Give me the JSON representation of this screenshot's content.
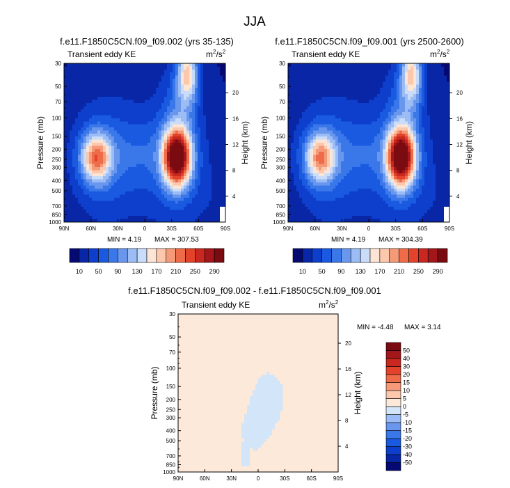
{
  "figure": {
    "title": "JJA"
  },
  "chart_data": [
    {
      "type": "heatmap",
      "title": "f.e11.F1850C5CN.f09_f09.002 (yrs 35-135)",
      "subtitle_left": "Transient eddy KE",
      "units": "m",
      "units_sup1": "2",
      "units_mid": "/s",
      "units_sup2": "2",
      "xlabel": "",
      "ylabel": "Pressure (mb)",
      "ylabel_right": "Height (km)",
      "x_ticks": [
        "90N",
        "60N",
        "30N",
        "0",
        "30S",
        "60S",
        "90S"
      ],
      "x_values": [
        90,
        60,
        30,
        0,
        -30,
        -60,
        -90
      ],
      "y_ticks": [
        "30",
        "50",
        "70",
        "100",
        "150",
        "200",
        "250",
        "300",
        "400",
        "500",
        "700",
        "850",
        "1000"
      ],
      "y_values": [
        30,
        50,
        70,
        100,
        150,
        200,
        250,
        300,
        400,
        500,
        700,
        850,
        1000
      ],
      "height_ticks": [
        "4",
        "8",
        "12",
        "16",
        "20"
      ],
      "height_values": [
        4,
        8,
        12,
        16,
        20
      ],
      "ylim": [
        1000,
        30
      ],
      "xlim": [
        90,
        -90
      ],
      "min_label": "MIN =  4.19",
      "max_label": "MAX = 307.53",
      "min": 4.19,
      "max": 307.53,
      "colorbar": {
        "orientation": "horizontal",
        "levels": [
          10,
          30,
          50,
          70,
          90,
          110,
          130,
          150,
          170,
          190,
          210,
          230,
          250,
          270,
          290
        ],
        "tick_labels": [
          "10",
          "50",
          "90",
          "130",
          "170",
          "210",
          "250",
          "290"
        ],
        "colors": [
          "#050a72",
          "#0826a6",
          "#0d3fcc",
          "#1a5ae0",
          "#3a78ea",
          "#6a97ee",
          "#9cbcf5",
          "#c9dcfa",
          "#fde5d5",
          "#fbc8ae",
          "#f59a78",
          "#ee6c49",
          "#e4432b",
          "#c8281f",
          "#a3161a",
          "#7a0b10"
        ]
      },
      "features": [
        {
          "name": "southern-jet-maximum",
          "lat": -35,
          "pressure": 250,
          "value": 300
        },
        {
          "name": "northern-jet",
          "lat": 55,
          "pressure": 250,
          "value": 170
        },
        {
          "name": "southern-stratospheric-plume",
          "lat": -48,
          "pressure": 40,
          "value": 140
        }
      ]
    },
    {
      "type": "heatmap",
      "title": "f.e11.F1850C5CN.f09_f09.001 (yrs 2500-2600)",
      "subtitle_left": "Transient eddy KE",
      "units": "m",
      "units_sup1": "2",
      "units_mid": "/s",
      "units_sup2": "2",
      "xlabel": "",
      "ylabel": "Pressure (mb)",
      "ylabel_right": "Height (km)",
      "x_ticks": [
        "90N",
        "60N",
        "30N",
        "0",
        "30S",
        "60S",
        "90S"
      ],
      "x_values": [
        90,
        60,
        30,
        0,
        -30,
        -60,
        -90
      ],
      "y_ticks": [
        "30",
        "50",
        "70",
        "100",
        "150",
        "200",
        "250",
        "300",
        "400",
        "500",
        "700",
        "850",
        "1000"
      ],
      "y_values": [
        30,
        50,
        70,
        100,
        150,
        200,
        250,
        300,
        400,
        500,
        700,
        850,
        1000
      ],
      "height_ticks": [
        "4",
        "8",
        "12",
        "16",
        "20"
      ],
      "height_values": [
        4,
        8,
        12,
        16,
        20
      ],
      "ylim": [
        1000,
        30
      ],
      "xlim": [
        90,
        -90
      ],
      "min_label": "MIN =  4.19",
      "max_label": "MAX = 304.39",
      "min": 4.19,
      "max": 304.39,
      "colorbar": {
        "orientation": "horizontal",
        "levels": [
          10,
          30,
          50,
          70,
          90,
          110,
          130,
          150,
          170,
          190,
          210,
          230,
          250,
          270,
          290
        ],
        "tick_labels": [
          "10",
          "50",
          "90",
          "130",
          "170",
          "210",
          "250",
          "290"
        ],
        "colors": [
          "#050a72",
          "#0826a6",
          "#0d3fcc",
          "#1a5ae0",
          "#3a78ea",
          "#6a97ee",
          "#9cbcf5",
          "#c9dcfa",
          "#fde5d5",
          "#fbc8ae",
          "#f59a78",
          "#ee6c49",
          "#e4432b",
          "#c8281f",
          "#a3161a",
          "#7a0b10"
        ]
      },
      "features": [
        {
          "name": "southern-jet-maximum",
          "lat": -35,
          "pressure": 250,
          "value": 300
        },
        {
          "name": "northern-jet",
          "lat": 55,
          "pressure": 250,
          "value": 165
        },
        {
          "name": "southern-stratospheric-plume",
          "lat": -48,
          "pressure": 40,
          "value": 140
        }
      ]
    },
    {
      "type": "heatmap",
      "title": "f.e11.F1850C5CN.f09_f09.002 - f.e11.F1850C5CN.f09_f09.001",
      "subtitle_left": "Transient eddy KE",
      "units": "m",
      "units_sup1": "2",
      "units_mid": "/s",
      "units_sup2": "2",
      "xlabel": "",
      "ylabel": "Pressure (mb)",
      "ylabel_right": "Height (km)",
      "x_ticks": [
        "90N",
        "60N",
        "30N",
        "0",
        "30S",
        "60S",
        "90S"
      ],
      "x_values": [
        90,
        60,
        30,
        0,
        -30,
        -60,
        -90
      ],
      "y_ticks": [
        "30",
        "50",
        "70",
        "100",
        "150",
        "200",
        "250",
        "300",
        "400",
        "500",
        "700",
        "850",
        "1000"
      ],
      "y_values": [
        30,
        50,
        70,
        100,
        150,
        200,
        250,
        300,
        400,
        500,
        700,
        850,
        1000
      ],
      "height_ticks": [
        "4",
        "8",
        "12",
        "16",
        "20"
      ],
      "height_values": [
        4,
        8,
        12,
        16,
        20
      ],
      "ylim": [
        1000,
        30
      ],
      "xlim": [
        90,
        -90
      ],
      "min_label": "MIN = -4.48",
      "max_label": "MAX =  3.14",
      "min": -4.48,
      "max": 3.14,
      "colorbar": {
        "orientation": "vertical",
        "levels": [
          -50,
          -40,
          -30,
          -20,
          -15,
          -10,
          -5,
          0,
          5,
          10,
          15,
          20,
          30,
          40,
          50
        ],
        "tick_labels": [
          "-50",
          "-40",
          "-30",
          "-20",
          "-15",
          "-10",
          "-5",
          "0",
          "5",
          "10",
          "15",
          "20",
          "30",
          "40",
          "50"
        ],
        "colors": [
          "#050a72",
          "#0826a6",
          "#0d3fcc",
          "#1a5ae0",
          "#3a78ea",
          "#6a97ee",
          "#9cbcf5",
          "#d3e5f8",
          "#fde9d9",
          "#fbc8ae",
          "#f59a78",
          "#ee6c49",
          "#e4432b",
          "#c8281f",
          "#a3161a",
          "#7a0b10"
        ]
      },
      "regions": [
        {
          "name": "positive-band-north",
          "lat_range": [
            75,
            60
          ],
          "value": 2
        },
        {
          "name": "positive-band-central",
          "lat_range": [
            45,
            -45
          ],
          "value": 2
        },
        {
          "name": "negative-patch-equator",
          "lat_range": [
            20,
            -30
          ],
          "pressure_range": [
            100,
            700
          ],
          "value": -2
        },
        {
          "name": "positive-band-south",
          "lat_range": [
            -55,
            -65
          ],
          "value": 2
        }
      ]
    }
  ]
}
